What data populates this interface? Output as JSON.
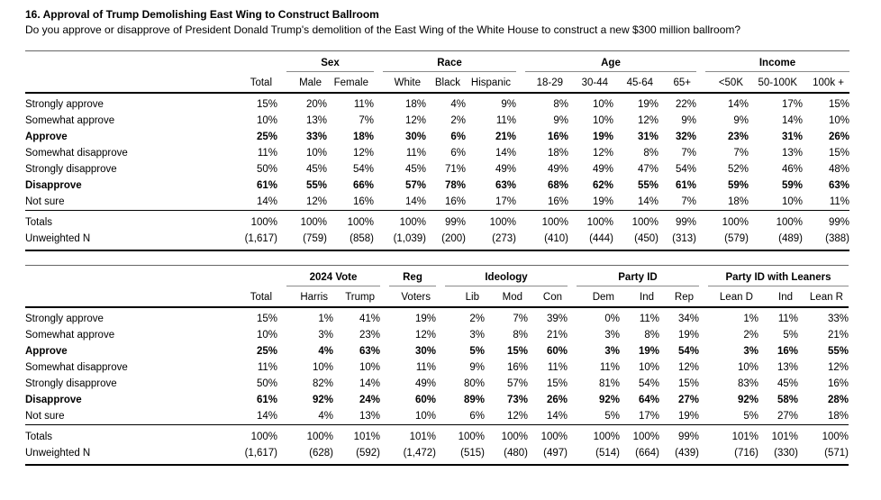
{
  "header": {
    "title": "16. Approval of Trump Demolishing East Wing to Construct Ballroom",
    "question": "Do you approve or disapprove of President Donald Trump's demolition of the East Wing of the White House to construct a new $300 million ballroom?"
  },
  "tables": [
    {
      "name": "demographics",
      "groups": [
        {
          "label": "",
          "cols": [
            "Total"
          ]
        },
        {
          "label": "Sex",
          "cols": [
            "Male",
            "Female"
          ]
        },
        {
          "label": "Race",
          "cols": [
            "White",
            "Black",
            "Hispanic"
          ]
        },
        {
          "label": "Age",
          "cols": [
            "18-29",
            "30-44",
            "45-64",
            "65+"
          ]
        },
        {
          "label": "Income",
          "cols": [
            "<50K",
            "50-100K",
            "100k +"
          ]
        }
      ],
      "rows": [
        {
          "label": "Strongly approve",
          "bold": false,
          "values": [
            "15%",
            "20%",
            "11%",
            "18%",
            "4%",
            "9%",
            "8%",
            "10%",
            "19%",
            "22%",
            "14%",
            "17%",
            "15%"
          ]
        },
        {
          "label": "Somewhat approve",
          "bold": false,
          "values": [
            "10%",
            "13%",
            "7%",
            "12%",
            "2%",
            "11%",
            "9%",
            "10%",
            "12%",
            "9%",
            "9%",
            "14%",
            "10%"
          ]
        },
        {
          "label": "Approve",
          "bold": true,
          "values": [
            "25%",
            "33%",
            "18%",
            "30%",
            "6%",
            "21%",
            "16%",
            "19%",
            "31%",
            "32%",
            "23%",
            "31%",
            "26%"
          ]
        },
        {
          "label": "Somewhat disapprove",
          "bold": false,
          "values": [
            "11%",
            "10%",
            "12%",
            "11%",
            "6%",
            "14%",
            "18%",
            "12%",
            "8%",
            "7%",
            "7%",
            "13%",
            "15%"
          ]
        },
        {
          "label": "Strongly disapprove",
          "bold": false,
          "values": [
            "50%",
            "45%",
            "54%",
            "45%",
            "71%",
            "49%",
            "49%",
            "49%",
            "47%",
            "54%",
            "52%",
            "46%",
            "48%"
          ]
        },
        {
          "label": "Disapprove",
          "bold": true,
          "values": [
            "61%",
            "55%",
            "66%",
            "57%",
            "78%",
            "63%",
            "68%",
            "62%",
            "55%",
            "61%",
            "59%",
            "59%",
            "63%"
          ]
        },
        {
          "label": "Not sure",
          "bold": false,
          "values": [
            "14%",
            "12%",
            "16%",
            "14%",
            "16%",
            "17%",
            "16%",
            "19%",
            "14%",
            "7%",
            "18%",
            "10%",
            "11%"
          ]
        }
      ],
      "footer_rows": [
        {
          "label": "Totals",
          "values": [
            "100%",
            "100%",
            "100%",
            "100%",
            "99%",
            "100%",
            "100%",
            "100%",
            "100%",
            "99%",
            "100%",
            "100%",
            "99%"
          ]
        },
        {
          "label": "Unweighted N",
          "values": [
            "(1,617)",
            "(759)",
            "(858)",
            "(1,039)",
            "(200)",
            "(273)",
            "(410)",
            "(444)",
            "(450)",
            "(313)",
            "(579)",
            "(489)",
            "(388)"
          ]
        }
      ]
    },
    {
      "name": "politics",
      "groups": [
        {
          "label": "",
          "cols": [
            "Total"
          ]
        },
        {
          "label": "2024 Vote",
          "cols": [
            "Harris",
            "Trump"
          ]
        },
        {
          "label": "Reg",
          "cols": [
            "Voters"
          ]
        },
        {
          "label": "Ideology",
          "cols": [
            "Lib",
            "Mod",
            "Con"
          ]
        },
        {
          "label": "Party ID",
          "cols": [
            "Dem",
            "Ind",
            "Rep"
          ]
        },
        {
          "label": "Party ID with Leaners",
          "cols": [
            "Lean D",
            "Ind",
            "Lean R"
          ]
        }
      ],
      "rows": [
        {
          "label": "Strongly approve",
          "bold": false,
          "values": [
            "15%",
            "1%",
            "41%",
            "19%",
            "2%",
            "7%",
            "39%",
            "0%",
            "11%",
            "34%",
            "1%",
            "11%",
            "33%"
          ]
        },
        {
          "label": "Somewhat approve",
          "bold": false,
          "values": [
            "10%",
            "3%",
            "23%",
            "12%",
            "3%",
            "8%",
            "21%",
            "3%",
            "8%",
            "19%",
            "2%",
            "5%",
            "21%"
          ]
        },
        {
          "label": "Approve",
          "bold": true,
          "values": [
            "25%",
            "4%",
            "63%",
            "30%",
            "5%",
            "15%",
            "60%",
            "3%",
            "19%",
            "54%",
            "3%",
            "16%",
            "55%"
          ]
        },
        {
          "label": "Somewhat disapprove",
          "bold": false,
          "values": [
            "11%",
            "10%",
            "10%",
            "11%",
            "9%",
            "16%",
            "11%",
            "11%",
            "10%",
            "12%",
            "10%",
            "13%",
            "12%"
          ]
        },
        {
          "label": "Strongly disapprove",
          "bold": false,
          "values": [
            "50%",
            "82%",
            "14%",
            "49%",
            "80%",
            "57%",
            "15%",
            "81%",
            "54%",
            "15%",
            "83%",
            "45%",
            "16%"
          ]
        },
        {
          "label": "Disapprove",
          "bold": true,
          "values": [
            "61%",
            "92%",
            "24%",
            "60%",
            "89%",
            "73%",
            "26%",
            "92%",
            "64%",
            "27%",
            "92%",
            "58%",
            "28%"
          ]
        },
        {
          "label": "Not sure",
          "bold": false,
          "values": [
            "14%",
            "4%",
            "13%",
            "10%",
            "6%",
            "12%",
            "14%",
            "5%",
            "17%",
            "19%",
            "5%",
            "27%",
            "18%"
          ]
        }
      ],
      "footer_rows": [
        {
          "label": "Totals",
          "values": [
            "100%",
            "100%",
            "101%",
            "101%",
            "100%",
            "100%",
            "100%",
            "100%",
            "100%",
            "99%",
            "101%",
            "101%",
            "100%"
          ]
        },
        {
          "label": "Unweighted N",
          "values": [
            "(1,617)",
            "(628)",
            "(592)",
            "(1,472)",
            "(515)",
            "(480)",
            "(497)",
            "(514)",
            "(664)",
            "(439)",
            "(716)",
            "(330)",
            "(571)"
          ]
        }
      ]
    }
  ]
}
